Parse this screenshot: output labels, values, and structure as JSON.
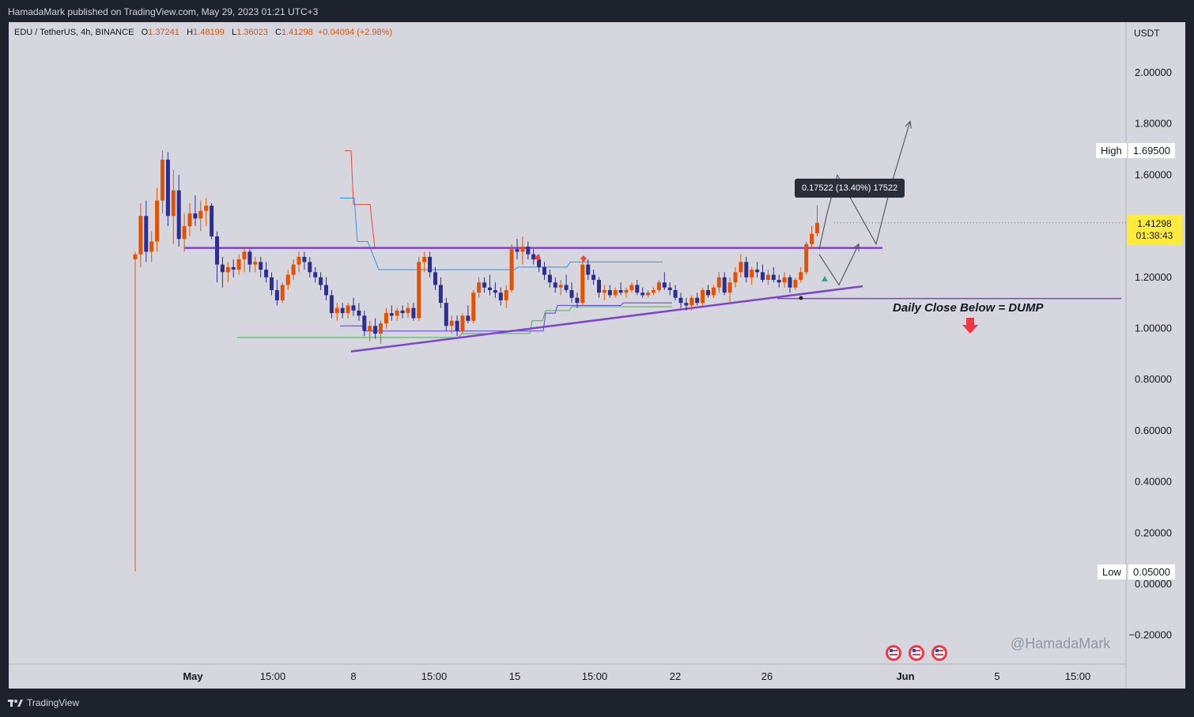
{
  "header": {
    "published_line": "HamadaMark published on TradingView.com, May 29, 2023 01:21 UTC+3"
  },
  "footer": {
    "brand": "TradingView"
  },
  "colors": {
    "up": "#e65100",
    "down": "#2e2e8f",
    "trendline": "#7e44c9",
    "background": "#d6d7de"
  },
  "chart_data": {
    "type": "candlestick",
    "symbol_line": {
      "name": "EDU / TetherUS, 4h, BINANCE",
      "o_label": "O",
      "o": "1.37241",
      "h_label": "H",
      "h": "1.48199",
      "l_label": "L",
      "l": "1.36023",
      "c_label": "C",
      "c": "1.41298",
      "change": "+0.04094 (+2.98%)"
    },
    "currency": "USDT",
    "ylim": [
      -0.28,
      2.2
    ],
    "y_ticks": [
      "2.00000",
      "1.80000",
      "1.60000",
      "1.20000",
      "1.00000",
      "0.80000",
      "0.60000",
      "0.40000",
      "0.20000",
      "0.00000",
      "−0.20000"
    ],
    "x_ticks": [
      "May",
      "15:00",
      "8",
      "15:00",
      "15",
      "15:00",
      "22",
      "26",
      "Jun",
      "5",
      "15:00"
    ],
    "high": {
      "label": "High",
      "value": "1.69500"
    },
    "low": {
      "label": "Low",
      "value": "0.05000"
    },
    "last_price": {
      "value": "1.41298",
      "countdown": "01:38:43"
    },
    "measure_label": "0.17522 (13.40%) 17522",
    "annotation": "Daily Close Below = DUMP",
    "watermark": "@HamadaMark",
    "candles": [
      [
        1.27,
        1.3,
        0.05,
        1.29
      ],
      [
        1.29,
        1.49,
        1.24,
        1.44
      ],
      [
        1.44,
        1.5,
        1.26,
        1.3
      ],
      [
        1.3,
        1.38,
        1.26,
        1.34
      ],
      [
        1.34,
        1.55,
        1.3,
        1.5
      ],
      [
        1.5,
        1.695,
        1.45,
        1.66
      ],
      [
        1.66,
        1.69,
        1.4,
        1.44
      ],
      [
        1.44,
        1.62,
        1.33,
        1.54
      ],
      [
        1.54,
        1.6,
        1.32,
        1.35
      ],
      [
        1.35,
        1.45,
        1.3,
        1.4
      ],
      [
        1.4,
        1.49,
        1.36,
        1.45
      ],
      [
        1.45,
        1.52,
        1.4,
        1.43
      ],
      [
        1.43,
        1.5,
        1.38,
        1.46
      ],
      [
        1.46,
        1.51,
        1.4,
        1.48
      ],
      [
        1.48,
        1.49,
        1.35,
        1.36
      ],
      [
        1.36,
        1.38,
        1.18,
        1.25
      ],
      [
        1.25,
        1.28,
        1.16,
        1.22
      ],
      [
        1.22,
        1.26,
        1.18,
        1.24
      ],
      [
        1.24,
        1.27,
        1.2,
        1.23
      ],
      [
        1.23,
        1.29,
        1.21,
        1.27
      ],
      [
        1.27,
        1.32,
        1.22,
        1.3
      ],
      [
        1.3,
        1.31,
        1.22,
        1.25
      ],
      [
        1.25,
        1.28,
        1.22,
        1.26
      ],
      [
        1.26,
        1.28,
        1.2,
        1.23
      ],
      [
        1.23,
        1.26,
        1.18,
        1.2
      ],
      [
        1.2,
        1.22,
        1.13,
        1.15
      ],
      [
        1.15,
        1.19,
        1.09,
        1.11
      ],
      [
        1.11,
        1.18,
        1.1,
        1.17
      ],
      [
        1.17,
        1.23,
        1.15,
        1.21
      ],
      [
        1.21,
        1.27,
        1.19,
        1.25
      ],
      [
        1.25,
        1.3,
        1.22,
        1.28
      ],
      [
        1.28,
        1.3,
        1.23,
        1.26
      ],
      [
        1.26,
        1.28,
        1.2,
        1.22
      ],
      [
        1.22,
        1.24,
        1.18,
        1.2
      ],
      [
        1.2,
        1.22,
        1.15,
        1.17
      ],
      [
        1.17,
        1.2,
        1.11,
        1.13
      ],
      [
        1.13,
        1.15,
        1.04,
        1.06
      ],
      [
        1.06,
        1.1,
        1.03,
        1.08
      ],
      [
        1.08,
        1.1,
        1.04,
        1.06
      ],
      [
        1.06,
        1.1,
        1.04,
        1.09
      ],
      [
        1.09,
        1.12,
        1.05,
        1.07
      ],
      [
        1.07,
        1.1,
        1.03,
        1.05
      ],
      [
        1.05,
        1.07,
        0.97,
        0.99
      ],
      [
        0.99,
        1.03,
        0.95,
        1.01
      ],
      [
        1.01,
        1.04,
        0.96,
        0.98
      ],
      [
        0.98,
        1.03,
        0.94,
        1.02
      ],
      [
        1.02,
        1.08,
        1.0,
        1.06
      ],
      [
        1.06,
        1.09,
        1.03,
        1.05
      ],
      [
        1.05,
        1.08,
        1.03,
        1.07
      ],
      [
        1.07,
        1.09,
        1.04,
        1.06
      ],
      [
        1.06,
        1.1,
        1.04,
        1.08
      ],
      [
        1.08,
        1.1,
        1.03,
        1.04
      ],
      [
        1.04,
        1.28,
        1.03,
        1.26
      ],
      [
        1.26,
        1.3,
        1.22,
        1.28
      ],
      [
        1.28,
        1.3,
        1.2,
        1.22
      ],
      [
        1.22,
        1.24,
        1.15,
        1.17
      ],
      [
        1.17,
        1.2,
        1.08,
        1.1
      ],
      [
        1.1,
        1.12,
        0.99,
        1.01
      ],
      [
        1.01,
        1.05,
        0.98,
        1.03
      ],
      [
        1.03,
        1.05,
        0.97,
        0.99
      ],
      [
        0.99,
        1.06,
        0.98,
        1.05
      ],
      [
        1.05,
        1.09,
        1.02,
        1.03
      ],
      [
        1.03,
        1.15,
        1.02,
        1.14
      ],
      [
        1.14,
        1.2,
        1.12,
        1.18
      ],
      [
        1.18,
        1.2,
        1.14,
        1.16
      ],
      [
        1.16,
        1.21,
        1.13,
        1.15
      ],
      [
        1.15,
        1.18,
        1.12,
        1.14
      ],
      [
        1.14,
        1.16,
        1.09,
        1.11
      ],
      [
        1.11,
        1.17,
        1.08,
        1.15
      ],
      [
        1.15,
        1.33,
        1.14,
        1.31
      ],
      [
        1.31,
        1.35,
        1.27,
        1.3
      ],
      [
        1.3,
        1.36,
        1.25,
        1.32
      ],
      [
        1.32,
        1.34,
        1.27,
        1.29
      ],
      [
        1.29,
        1.31,
        1.25,
        1.27
      ],
      [
        1.27,
        1.29,
        1.22,
        1.24
      ],
      [
        1.24,
        1.26,
        1.19,
        1.21
      ],
      [
        1.21,
        1.23,
        1.16,
        1.18
      ],
      [
        1.18,
        1.2,
        1.14,
        1.16
      ],
      [
        1.16,
        1.19,
        1.13,
        1.17
      ],
      [
        1.17,
        1.21,
        1.14,
        1.15
      ],
      [
        1.15,
        1.18,
        1.1,
        1.12
      ],
      [
        1.12,
        1.14,
        1.08,
        1.1
      ],
      [
        1.1,
        1.27,
        1.09,
        1.25
      ],
      [
        1.25,
        1.27,
        1.19,
        1.21
      ],
      [
        1.21,
        1.23,
        1.17,
        1.19
      ],
      [
        1.19,
        1.2,
        1.12,
        1.14
      ],
      [
        1.14,
        1.17,
        1.11,
        1.15
      ],
      [
        1.15,
        1.17,
        1.12,
        1.13
      ],
      [
        1.13,
        1.16,
        1.12,
        1.15
      ],
      [
        1.15,
        1.18,
        1.13,
        1.14
      ],
      [
        1.14,
        1.16,
        1.12,
        1.15
      ],
      [
        1.15,
        1.18,
        1.14,
        1.17
      ],
      [
        1.17,
        1.19,
        1.13,
        1.14
      ],
      [
        1.14,
        1.16,
        1.12,
        1.13
      ],
      [
        1.13,
        1.15,
        1.12,
        1.14
      ],
      [
        1.14,
        1.16,
        1.13,
        1.15
      ],
      [
        1.15,
        1.19,
        1.14,
        1.18
      ],
      [
        1.18,
        1.22,
        1.15,
        1.16
      ],
      [
        1.16,
        1.18,
        1.13,
        1.15
      ],
      [
        1.15,
        1.17,
        1.11,
        1.12
      ],
      [
        1.12,
        1.14,
        1.08,
        1.1
      ],
      [
        1.1,
        1.12,
        1.07,
        1.09
      ],
      [
        1.09,
        1.13,
        1.07,
        1.12
      ],
      [
        1.12,
        1.14,
        1.09,
        1.1
      ],
      [
        1.1,
        1.16,
        1.09,
        1.15
      ],
      [
        1.15,
        1.17,
        1.12,
        1.13
      ],
      [
        1.13,
        1.17,
        1.12,
        1.16
      ],
      [
        1.16,
        1.22,
        1.14,
        1.2
      ],
      [
        1.2,
        1.22,
        1.13,
        1.14
      ],
      [
        1.14,
        1.2,
        1.1,
        1.18
      ],
      [
        1.18,
        1.24,
        1.16,
        1.22
      ],
      [
        1.22,
        1.29,
        1.2,
        1.26
      ],
      [
        1.26,
        1.28,
        1.18,
        1.2
      ],
      [
        1.2,
        1.24,
        1.17,
        1.23
      ],
      [
        1.23,
        1.26,
        1.2,
        1.22
      ],
      [
        1.22,
        1.25,
        1.18,
        1.19
      ],
      [
        1.19,
        1.23,
        1.17,
        1.21
      ],
      [
        1.21,
        1.24,
        1.18,
        1.19
      ],
      [
        1.19,
        1.21,
        1.16,
        1.18
      ],
      [
        1.18,
        1.22,
        1.16,
        1.2
      ],
      [
        1.2,
        1.21,
        1.14,
        1.16
      ],
      [
        1.16,
        1.2,
        1.15,
        1.19
      ],
      [
        1.19,
        1.24,
        1.18,
        1.22
      ],
      [
        1.22,
        1.34,
        1.21,
        1.33
      ],
      [
        1.33,
        1.4,
        1.31,
        1.37
      ],
      [
        1.372,
        1.482,
        1.36,
        1.413
      ]
    ],
    "trendlines": [
      {
        "name": "resistance-line",
        "from": [
          62,
          1.315
        ],
        "to": [
          945,
          1.315
        ]
      },
      {
        "name": "support-trendline",
        "from": [
          273,
          0.91
        ],
        "to": [
          920,
          1.165
        ]
      },
      {
        "name": "breakdown-line",
        "from": [
          812,
          1.117
        ],
        "to": [
          1247,
          1.117
        ]
      }
    ],
    "projections": [
      {
        "name": "projection-path-1",
        "points": [
          [
            865,
            1.31
          ],
          [
            875,
            1.45
          ],
          [
            888,
            1.6
          ],
          [
            910,
            1.48
          ],
          [
            937,
            1.33
          ],
          [
            955,
            1.55
          ],
          [
            980,
            1.81
          ]
        ]
      },
      {
        "name": "projection-path-2",
        "points": [
          [
            865,
            1.29
          ],
          [
            890,
            1.17
          ],
          [
            915,
            1.33
          ]
        ]
      }
    ],
    "supertrend_upper": [
      [
        436,
        1.695
      ],
      [
        444,
        1.695
      ],
      [
        447,
        1.485
      ],
      [
        468,
        1.485
      ],
      [
        474,
        1.315
      ],
      [
        855,
        1.315
      ]
    ],
    "supertrend_mid": [
      [
        430,
        1.51
      ],
      [
        448,
        1.51
      ],
      [
        452,
        1.34
      ],
      [
        465,
        1.34
      ],
      [
        479,
        1.23
      ],
      [
        651,
        1.23
      ],
      [
        655,
        1.24
      ],
      [
        717,
        1.24
      ],
      [
        721,
        1.26
      ],
      [
        838,
        1.26
      ]
    ],
    "supertrend_lower": [
      [
        430,
        1.01
      ],
      [
        458,
        1.01
      ],
      [
        461,
        0.99
      ],
      [
        687,
        0.99
      ],
      [
        690,
        1.06
      ],
      [
        702,
        1.06
      ],
      [
        705,
        1.09
      ],
      [
        785,
        1.09
      ],
      [
        788,
        1.1
      ],
      [
        850,
        1.1
      ]
    ],
    "supertrend_green": [
      [
        300,
        0.965
      ],
      [
        580,
        0.965
      ],
      [
        584,
        0.98
      ],
      [
        670,
        0.98
      ],
      [
        673,
        1.03
      ],
      [
        686,
        1.03
      ],
      [
        690,
        1.07
      ],
      [
        720,
        1.07
      ],
      [
        723,
        1.085
      ],
      [
        850,
        1.085
      ]
    ]
  }
}
